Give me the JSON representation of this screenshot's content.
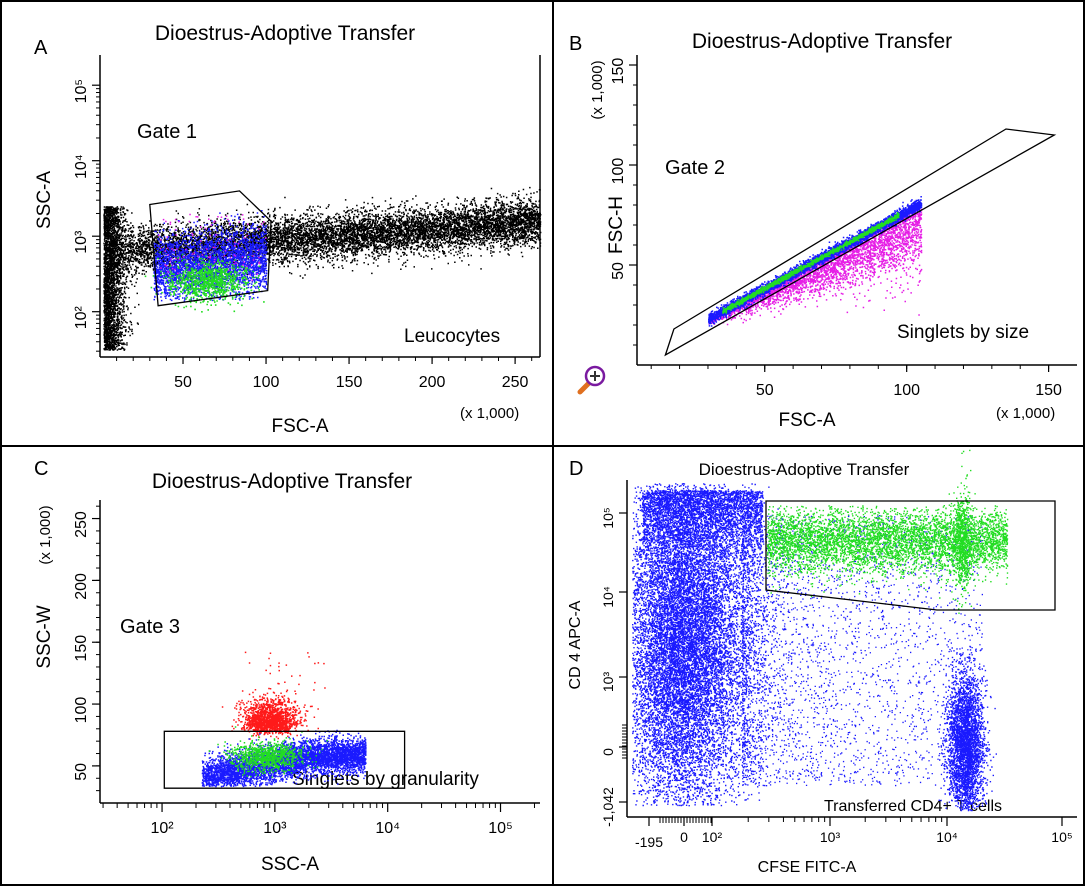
{
  "colors": {
    "black": "#000000",
    "blue": "#1a1aff",
    "green": "#22dd22",
    "magenta": "#e61ee6",
    "red": "#ff1a1a",
    "axis": "#000000"
  },
  "chart_data": [
    {
      "type": "scatter",
      "panel_label": "A",
      "title": "Dioestrus-Adoptive Transfer",
      "xlabel": "FSC-A",
      "ylabel": "SSC-A",
      "x_multiplier": "(x 1,000)",
      "x_ticks": [
        "50",
        "100",
        "150",
        "200",
        "250"
      ],
      "x_tick_values": [
        50,
        100,
        150,
        200,
        250
      ],
      "y_ticks": [
        "10²",
        "10³",
        "10⁴",
        "10⁵"
      ],
      "y_tick_values": [
        2,
        3,
        4,
        5
      ],
      "xlim": [
        0,
        265
      ],
      "ylim_log10": [
        1.4,
        5.4
      ],
      "gate_label": "Gate 1",
      "population_label": "Leucocytes",
      "gate_polygon": [
        [
          30,
          3.42
        ],
        [
          84,
          3.6
        ],
        [
          103,
          3.2
        ],
        [
          101,
          2.28
        ],
        [
          35,
          2.08
        ]
      ],
      "series": [
        {
          "color": "black",
          "cloud": {
            "x_range": [
              5,
              265
            ],
            "y_log10_center": 3.05,
            "note": "dense diagonal band"
          }
        },
        {
          "color": "blue",
          "cloud": {
            "x_range": [
              30,
              100
            ],
            "y_log10_range": [
              2.5,
              3.4
            ]
          }
        },
        {
          "color": "green",
          "cloud": {
            "x_center": 65,
            "y_log10_center": 2.85
          }
        }
      ]
    },
    {
      "type": "scatter",
      "panel_label": "B",
      "title": "Dioestrus-Adoptive Transfer",
      "xlabel": "FSC-A",
      "ylabel": "FSC-H",
      "x_multiplier": "(x 1,000)",
      "y_multiplier": "(x 1,000)",
      "x_ticks": [
        "50",
        "100",
        "150"
      ],
      "x_tick_values": [
        50,
        100,
        150
      ],
      "y_ticks": [
        "50",
        "100",
        "150"
      ],
      "y_tick_values": [
        50,
        100,
        150
      ],
      "xlim": [
        5,
        160
      ],
      "ylim": [
        0,
        155
      ],
      "gate_label": "Gate 2",
      "population_label": "Singlets by size",
      "gate_polygon": [
        [
          15,
          5
        ],
        [
          18,
          18
        ],
        [
          135,
          118
        ],
        [
          152,
          115
        ]
      ],
      "series": [
        {
          "color": "magenta",
          "cloud": {
            "x_range": [
              30,
              105
            ],
            "note": "below diagonal"
          }
        },
        {
          "color": "blue",
          "cloud": {
            "x_range": [
              30,
              105
            ],
            "note": "diagonal band"
          }
        },
        {
          "color": "green",
          "cloud": {
            "x_range": [
              35,
              100
            ],
            "note": "diagonal band core"
          }
        }
      ]
    },
    {
      "type": "scatter",
      "panel_label": "C",
      "title": "Dioestrus-Adoptive Transfer",
      "xlabel": "SSC-A",
      "ylabel": "SSC-W",
      "y_multiplier": "(x 1,000)",
      "x_ticks": [
        "10²",
        "10³",
        "10⁴",
        "10⁵"
      ],
      "x_tick_values": [
        2,
        3,
        4,
        5
      ],
      "y_ticks": [
        "50",
        "100",
        "150",
        "200",
        "250"
      ],
      "y_tick_values": [
        50,
        100,
        150,
        200,
        250
      ],
      "xlim_log10": [
        1.45,
        5.35
      ],
      "ylim": [
        20,
        265
      ],
      "gate_label": "Gate 3",
      "population_label": "Singlets by granularity",
      "gate_polygon": [
        [
          2.02,
          32
        ],
        [
          2.02,
          78
        ],
        [
          4.15,
          78
        ],
        [
          4.15,
          32
        ]
      ],
      "series": [
        {
          "color": "red",
          "cloud": {
            "x_log10_center": 2.95,
            "y_center": 88
          }
        },
        {
          "color": "blue",
          "cloud": {
            "x_log10_range": [
              2.25,
              3.8
            ],
            "y_range": [
              35,
              80
            ]
          }
        },
        {
          "color": "green",
          "cloud": {
            "x_log10_center": 2.9,
            "y_center": 58
          }
        }
      ]
    },
    {
      "type": "scatter",
      "panel_label": "D",
      "title": "Dioestrus-Adoptive Transfer",
      "xlabel": "CFSE FITC-A",
      "ylabel": "CD 4 APC-A",
      "x_ticks": [
        "-195",
        "0",
        "10²",
        "10³",
        "10⁴",
        "10⁵"
      ],
      "y_ticks": [
        "-1,042",
        "0",
        "10³",
        "10⁴",
        "10⁵"
      ],
      "gate_label": "",
      "population_label": "Transferred CD4+ T cells",
      "series": [
        {
          "color": "blue",
          "note": "large CFSE-negative population and CFSE-high cluster"
        },
        {
          "color": "green",
          "note": "gated CD4+ CFSE+ transferred cells"
        }
      ]
    }
  ]
}
